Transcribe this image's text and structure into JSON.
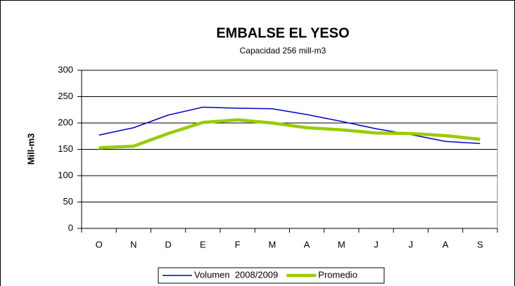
{
  "chart_data": {
    "type": "line",
    "title": "EMBALSE EL YESO",
    "subtitle": "Capacidad 256 mill-m3",
    "y_label": "Mill-m3",
    "categories": [
      "O",
      "N",
      "D",
      "E",
      "F",
      "M",
      "A",
      "M",
      "J",
      "J",
      "A",
      "S"
    ],
    "series": [
      {
        "name": "Volumen  2008/2009",
        "color": "#0000cc",
        "values": [
          177,
          191,
          215,
          230,
          228,
          227,
          216,
          203,
          189,
          178,
          165,
          161
        ]
      },
      {
        "name": "Promedio",
        "color": "#99cc00",
        "values": [
          153,
          156,
          180,
          201,
          206,
          200,
          191,
          187,
          181,
          180,
          176,
          169
        ]
      }
    ],
    "ylim": [
      0,
      300
    ],
    "yticks": [
      0,
      50,
      100,
      150,
      200,
      250,
      300
    ],
    "grid": true,
    "legend": "bottom"
  }
}
